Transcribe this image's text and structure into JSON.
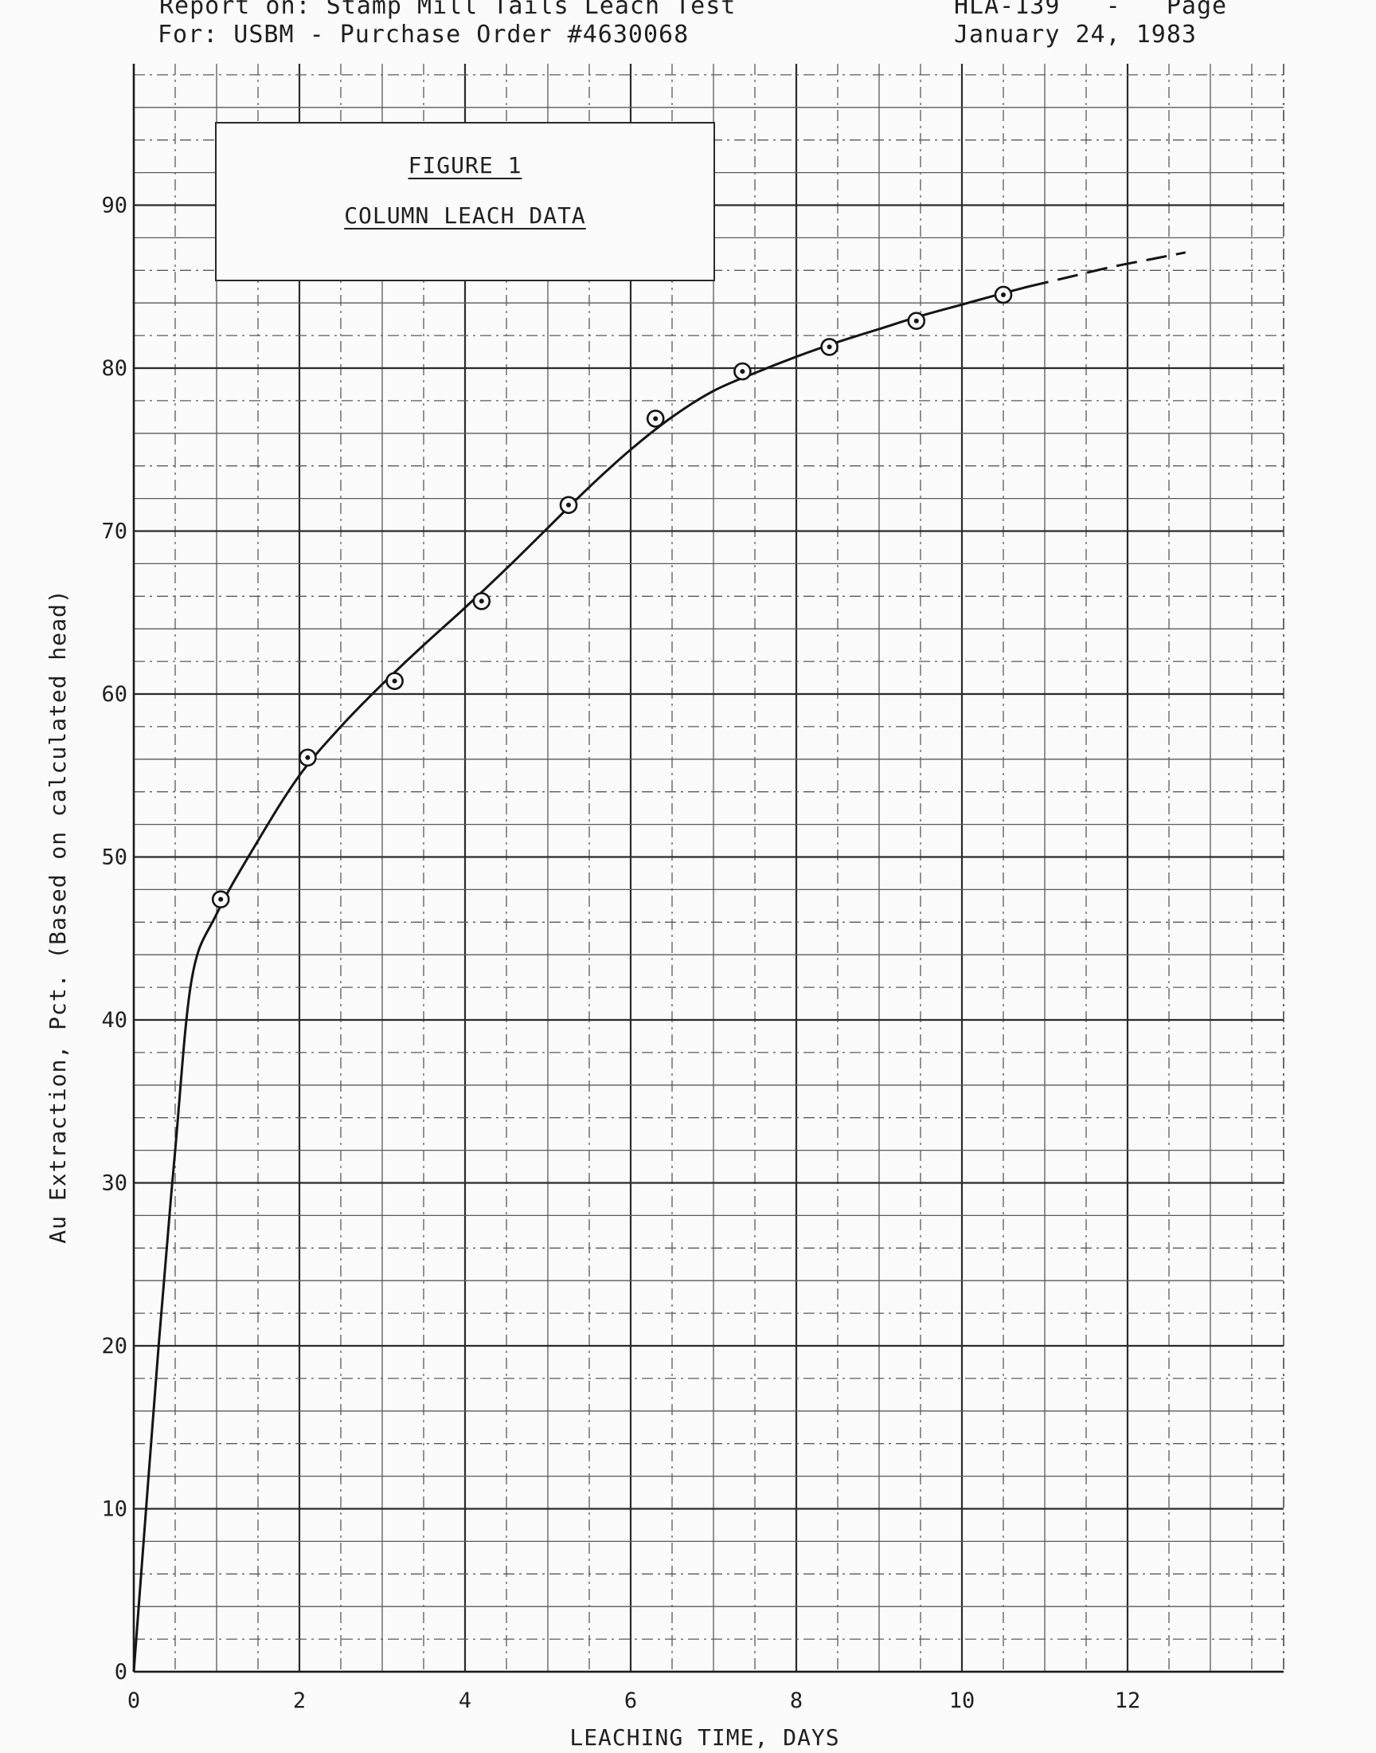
{
  "header": {
    "report_line": "Report on: Stamp Mill Tails Leach Test",
    "for_line": "For: USBM - Purchase Order #4630068",
    "doc_ref": "HLA-139   -   Page",
    "date": "January 24, 1983"
  },
  "chart_data": {
    "type": "scatter",
    "figure_label": "FIGURE 1",
    "title": "COLUMN LEACH DATA",
    "xlabel": "LEACHING TIME, DAYS",
    "ylabel": "Au Extraction, Pct. (Based on calculated head)",
    "xlim": [
      0,
      14
    ],
    "ylim": [
      0,
      100
    ],
    "xticks": [
      0,
      2,
      4,
      6,
      8,
      10,
      12
    ],
    "yticks": [
      0,
      10,
      20,
      30,
      40,
      50,
      60,
      70,
      80,
      90
    ],
    "grid": true,
    "series": [
      {
        "marker": "circled-dot",
        "x": [
          1.05,
          2.1,
          3.15,
          4.2,
          5.25,
          6.3,
          7.35,
          8.4,
          9.45,
          10.5
        ],
        "y": [
          47.4,
          56.1,
          60.8,
          65.7,
          71.6,
          76.9,
          79.8,
          81.3,
          82.9,
          84.5
        ]
      }
    ],
    "fit_curve": {
      "style": "solid",
      "x": [
        0,
        0.3,
        0.5,
        0.7,
        1.0,
        1.5,
        2.0,
        2.5,
        3.0,
        3.5,
        4.0,
        4.5,
        5.0,
        5.5,
        6.0,
        6.5,
        7.0,
        7.5,
        8.0,
        8.5,
        9.0,
        9.5,
        10.0,
        10.5,
        10.8
      ],
      "y": [
        0,
        20,
        32,
        42.5,
        46.5,
        51,
        55,
        58,
        60.6,
        63,
        65.3,
        67.7,
        70.2,
        72.7,
        75,
        77,
        78.6,
        79.7,
        80.7,
        81.6,
        82.4,
        83.2,
        83.9,
        84.6,
        85.0
      ]
    },
    "extrapolation": {
      "style": "dashed",
      "x": [
        10.8,
        11.3,
        11.8,
        12.3,
        12.7
      ],
      "y": [
        85.0,
        85.6,
        86.2,
        86.7,
        87.1
      ]
    }
  }
}
